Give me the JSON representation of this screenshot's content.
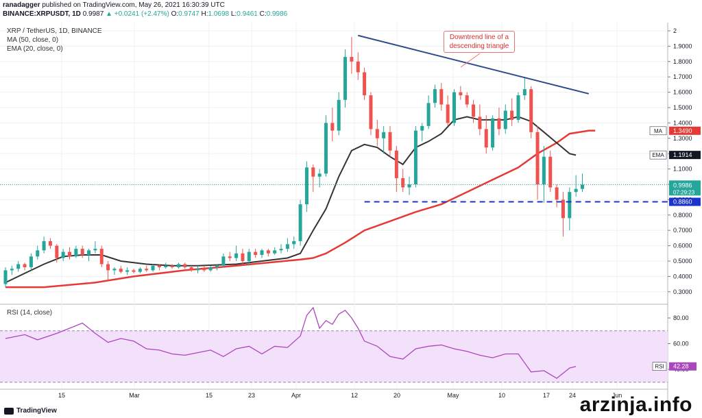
{
  "header": {
    "publisher": "ranadagger",
    "published_text": "published on TradingView.com, May 26, 2021 16:30:39 UTC",
    "symbol_line": "BINANCE:XRPUSDT, 1D",
    "last": "0.9987",
    "change": "▲ +0.0241 (+2.47%)",
    "o_label": "O:",
    "o": "0.9747",
    "h_label": "H:",
    "h": "1.0698",
    "l_label": "L:",
    "l": "0.9461",
    "c_label": "C:",
    "c": "0.9986"
  },
  "legend": {
    "pair": "XRP / TetherUS, 1D, BINANCE",
    "ma": "MA (50, close, 0)",
    "ema": "EMA (20, close, 0)",
    "rsi": "RSI (14, close)"
  },
  "annotation": {
    "line1": "Downtrend line of a",
    "line2": "descending triangle"
  },
  "footer": {
    "logo_text": "TradingView",
    "watermark": "arzinja.info"
  },
  "colors": {
    "up": "#26a69a",
    "down": "#ef5350",
    "ma": "#e53935",
    "ema": "#333333",
    "trendline": "#2e4a8c",
    "support": "#1a33cc",
    "rsi": "#ab47bc",
    "rsi_band": "#f3e0fa"
  },
  "chart_data": [
    {
      "type": "candlestick",
      "title": "XRP / TetherUS, 1D, BINANCE",
      "x_ticks": [
        "15",
        "Mar",
        "15",
        "23",
        "Apr",
        "12",
        "20",
        "May",
        "10",
        "17",
        "24",
        "Jun"
      ],
      "y_ticks": [
        "2",
        "1.9000",
        "1.8000",
        "1.7000",
        "1.6000",
        "1.5000",
        "1.4000",
        "1.3000",
        "1.2000",
        "1.1000",
        "1.0000",
        "0.9000",
        "0.8000",
        "0.7000",
        "0.6000",
        "0.5000",
        "0.4000",
        "0.3000"
      ],
      "ylim": [
        0.22,
        2.03
      ],
      "price_labels": [
        {
          "name": "MA",
          "value": "1.3490"
        },
        {
          "name": "EMA",
          "value": "1.1914"
        },
        {
          "name": "last",
          "value": "0.9986",
          "sub": "07:29:23"
        },
        {
          "name": "support",
          "value": "0.8860"
        }
      ],
      "support_level": 0.886,
      "trendline": [
        [
          1,
          1.97
        ],
        [
          61,
          1.59
        ]
      ],
      "series": [
        {
          "name": "XRP/USDT",
          "ohlc": [
            [
              0.35,
              0.46,
              0.33,
              0.44
            ],
            [
              0.44,
              0.47,
              0.41,
              0.45
            ],
            [
              0.45,
              0.5,
              0.43,
              0.48
            ],
            [
              0.48,
              0.49,
              0.44,
              0.46
            ],
            [
              0.46,
              0.55,
              0.44,
              0.53
            ],
            [
              0.53,
              0.6,
              0.51,
              0.57
            ],
            [
              0.57,
              0.66,
              0.55,
              0.63
            ],
            [
              0.63,
              0.65,
              0.58,
              0.6
            ],
            [
              0.6,
              0.61,
              0.49,
              0.52
            ],
            [
              0.52,
              0.58,
              0.5,
              0.56
            ],
            [
              0.56,
              0.59,
              0.51,
              0.53
            ],
            [
              0.53,
              0.6,
              0.52,
              0.58
            ],
            [
              0.58,
              0.6,
              0.52,
              0.54
            ],
            [
              0.54,
              0.58,
              0.5,
              0.57
            ],
            [
              0.57,
              0.63,
              0.55,
              0.58
            ],
            [
              0.58,
              0.6,
              0.46,
              0.48
            ],
            [
              0.48,
              0.5,
              0.37,
              0.44
            ],
            [
              0.44,
              0.46,
              0.41,
              0.45
            ],
            [
              0.45,
              0.47,
              0.42,
              0.43
            ],
            [
              0.43,
              0.46,
              0.41,
              0.44
            ],
            [
              0.44,
              0.45,
              0.42,
              0.43
            ],
            [
              0.43,
              0.46,
              0.42,
              0.45
            ],
            [
              0.45,
              0.47,
              0.43,
              0.44
            ],
            [
              0.44,
              0.48,
              0.43,
              0.47
            ],
            [
              0.47,
              0.48,
              0.44,
              0.46
            ],
            [
              0.46,
              0.49,
              0.45,
              0.47
            ],
            [
              0.47,
              0.48,
              0.45,
              0.46
            ],
            [
              0.46,
              0.49,
              0.45,
              0.48
            ],
            [
              0.48,
              0.49,
              0.45,
              0.46
            ],
            [
              0.46,
              0.47,
              0.43,
              0.44
            ],
            [
              0.44,
              0.47,
              0.42,
              0.45
            ],
            [
              0.45,
              0.47,
              0.43,
              0.44
            ],
            [
              0.44,
              0.47,
              0.43,
              0.46
            ],
            [
              0.46,
              0.48,
              0.44,
              0.47
            ],
            [
              0.47,
              0.55,
              0.46,
              0.53
            ],
            [
              0.53,
              0.56,
              0.5,
              0.52
            ],
            [
              0.52,
              0.6,
              0.5,
              0.55
            ],
            [
              0.55,
              0.58,
              0.48,
              0.5
            ],
            [
              0.5,
              0.58,
              0.47,
              0.56
            ],
            [
              0.56,
              0.58,
              0.52,
              0.54
            ],
            [
              0.54,
              0.58,
              0.52,
              0.57
            ],
            [
              0.57,
              0.58,
              0.53,
              0.55
            ],
            [
              0.55,
              0.59,
              0.54,
              0.57
            ],
            [
              0.57,
              0.61,
              0.55,
              0.58
            ],
            [
              0.58,
              0.65,
              0.56,
              0.61
            ],
            [
              0.61,
              0.66,
              0.58,
              0.63
            ],
            [
              0.63,
              0.9,
              0.6,
              0.87
            ],
            [
              0.87,
              1.15,
              0.82,
              1.11
            ],
            [
              1.11,
              1.13,
              0.95,
              1.05
            ],
            [
              1.05,
              1.1,
              0.98,
              1.07
            ],
            [
              1.07,
              1.45,
              1.05,
              1.4
            ],
            [
              1.4,
              1.5,
              1.28,
              1.35
            ],
            [
              1.35,
              1.6,
              1.32,
              1.55
            ],
            [
              1.55,
              1.88,
              1.5,
              1.83
            ],
            [
              1.83,
              1.96,
              1.72,
              1.8
            ],
            [
              1.8,
              1.86,
              1.68,
              1.73
            ],
            [
              1.73,
              1.76,
              1.55,
              1.58
            ],
            [
              1.58,
              1.6,
              1.32,
              1.36
            ],
            [
              1.36,
              1.42,
              1.25,
              1.3
            ],
            [
              1.3,
              1.38,
              1.2,
              1.34
            ],
            [
              1.34,
              1.38,
              1.18,
              1.22
            ],
            [
              1.22,
              1.25,
              0.95,
              1.04
            ],
            [
              1.04,
              1.1,
              0.95,
              0.98
            ],
            [
              0.98,
              1.05,
              0.93,
              1.0
            ],
            [
              1.0,
              1.38,
              0.98,
              1.35
            ],
            [
              1.35,
              1.4,
              1.28,
              1.38
            ],
            [
              1.38,
              1.58,
              1.36,
              1.53
            ],
            [
              1.53,
              1.65,
              1.5,
              1.62
            ],
            [
              1.62,
              1.66,
              1.48,
              1.52
            ],
            [
              1.52,
              1.58,
              1.38,
              1.4
            ],
            [
              1.4,
              1.62,
              1.38,
              1.6
            ],
            [
              1.6,
              1.64,
              1.55,
              1.58
            ],
            [
              1.58,
              1.6,
              1.5,
              1.52
            ],
            [
              1.52,
              1.55,
              1.4,
              1.44
            ],
            [
              1.44,
              1.52,
              1.32,
              1.36
            ],
            [
              1.36,
              1.45,
              1.2,
              1.24
            ],
            [
              1.24,
              1.45,
              1.22,
              1.43
            ],
            [
              1.43,
              1.5,
              1.32,
              1.36
            ],
            [
              1.36,
              1.52,
              1.33,
              1.48
            ],
            [
              1.48,
              1.56,
              1.38,
              1.42
            ],
            [
              1.42,
              1.6,
              1.4,
              1.58
            ],
            [
              1.58,
              1.7,
              1.55,
              1.62
            ],
            [
              1.62,
              1.64,
              1.3,
              1.34
            ],
            [
              1.34,
              1.38,
              0.9,
              1.0
            ],
            [
              1.0,
              1.25,
              0.88,
              1.18
            ],
            [
              1.18,
              1.22,
              0.95,
              0.98
            ],
            [
              0.98,
              1.0,
              0.85,
              0.9
            ],
            [
              0.9,
              0.95,
              0.66,
              0.78
            ],
            [
              0.78,
              0.98,
              0.7,
              0.95
            ],
            [
              0.95,
              1.06,
              0.92,
              0.97
            ],
            [
              0.97,
              1.07,
              0.95,
              0.9986
            ]
          ],
          "ma50": [
            [
              0,
              0.33
            ],
            [
              6,
              0.33
            ],
            [
              14,
              0.36
            ],
            [
              20,
              0.4
            ],
            [
              28,
              0.44
            ],
            [
              36,
              0.47
            ],
            [
              46,
              0.51
            ],
            [
              48,
              0.52
            ],
            [
              50,
              0.55
            ],
            [
              53,
              0.62
            ],
            [
              56,
              0.7
            ],
            [
              60,
              0.76
            ],
            [
              64,
              0.82
            ],
            [
              68,
              0.87
            ],
            [
              72,
              0.95
            ],
            [
              76,
              1.03
            ],
            [
              80,
              1.11
            ],
            [
              83,
              1.2
            ],
            [
              86,
              1.27
            ],
            [
              88,
              1.33
            ],
            [
              91,
              1.35
            ],
            [
              92,
              1.35
            ]
          ],
          "ema20": [
            [
              0,
              0.36
            ],
            [
              3,
              0.42
            ],
            [
              6,
              0.48
            ],
            [
              9,
              0.53
            ],
            [
              12,
              0.54
            ],
            [
              15,
              0.54
            ],
            [
              18,
              0.5
            ],
            [
              22,
              0.48
            ],
            [
              26,
              0.47
            ],
            [
              30,
              0.47
            ],
            [
              36,
              0.48
            ],
            [
              40,
              0.5
            ],
            [
              44,
              0.52
            ],
            [
              46,
              0.55
            ],
            [
              48,
              0.7
            ],
            [
              50,
              0.84
            ],
            [
              52,
              1.05
            ],
            [
              54,
              1.22
            ],
            [
              56,
              1.26
            ],
            [
              58,
              1.24
            ],
            [
              60,
              1.18
            ],
            [
              62,
              1.13
            ],
            [
              64,
              1.24
            ],
            [
              66,
              1.28
            ],
            [
              68,
              1.33
            ],
            [
              70,
              1.42
            ],
            [
              72,
              1.44
            ],
            [
              74,
              1.42
            ],
            [
              76,
              1.42
            ],
            [
              78,
              1.42
            ],
            [
              80,
              1.44
            ],
            [
              82,
              1.41
            ],
            [
              84,
              1.34
            ],
            [
              86,
              1.27
            ],
            [
              88,
              1.2
            ],
            [
              89,
              1.19
            ]
          ]
        }
      ]
    },
    {
      "type": "line",
      "title": "RSI (14, close)",
      "y_ticks": [
        "80.00",
        "60.00",
        "40.00"
      ],
      "ylim": [
        30,
        90
      ],
      "band": [
        30,
        70
      ],
      "last_label": {
        "name": "RSI",
        "value": "42.28"
      },
      "series": [
        {
          "name": "RSI",
          "x": [
            0,
            3,
            5,
            8,
            10,
            12,
            14,
            16,
            18,
            20,
            22,
            24,
            26,
            28,
            30,
            32,
            34,
            36,
            38,
            40,
            42,
            44,
            46,
            47,
            48,
            49,
            50,
            51,
            52,
            53,
            54,
            55,
            56,
            58,
            60,
            62,
            64,
            66,
            68,
            70,
            72,
            74,
            76,
            78,
            80,
            82,
            84,
            86,
            88,
            89
          ],
          "values": [
            64,
            67,
            63,
            68,
            72,
            76,
            68,
            61,
            64,
            62,
            56,
            55,
            52,
            51,
            53,
            55,
            50,
            56,
            58,
            52,
            58,
            57,
            66,
            82,
            88,
            72,
            78,
            75,
            83,
            86,
            80,
            72,
            62,
            58,
            50,
            48,
            56,
            58,
            59,
            56,
            54,
            51,
            49,
            52,
            52,
            38,
            39,
            33,
            41,
            42.28
          ]
        }
      ]
    }
  ]
}
